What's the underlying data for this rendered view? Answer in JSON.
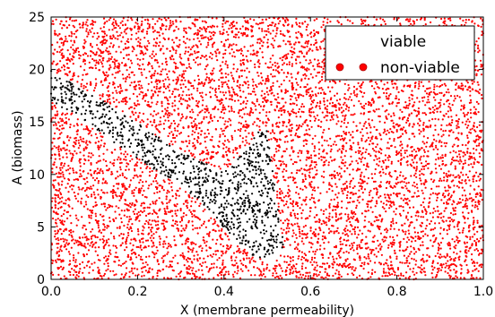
{
  "chart_data": {
    "type": "scatter",
    "title": "",
    "xlabel": "X (membrane permeability)",
    "ylabel": "A (biomass)",
    "xlim": [
      0.0,
      1.0
    ],
    "ylim": [
      0,
      25
    ],
    "xticks": [
      "0.0",
      "0.2",
      "0.4",
      "0.6",
      "0.8",
      "1.0"
    ],
    "yticks": [
      "0",
      "5",
      "10",
      "15",
      "20",
      "25"
    ],
    "grid": false,
    "legend": {
      "placement": "top-right"
    },
    "series": [
      {
        "name": "viable",
        "color": "#000000",
        "region_polygon": [
          [
            0.0,
            20.0
          ],
          [
            0.06,
            18.6
          ],
          [
            0.12,
            17.0
          ],
          [
            0.18,
            15.4
          ],
          [
            0.24,
            13.8
          ],
          [
            0.3,
            12.2
          ],
          [
            0.36,
            11.0
          ],
          [
            0.4,
            10.4
          ],
          [
            0.43,
            11.4
          ],
          [
            0.46,
            12.8
          ],
          [
            0.48,
            14.2
          ],
          [
            0.5,
            14.2
          ],
          [
            0.51,
            11.0
          ],
          [
            0.52,
            8.0
          ],
          [
            0.53,
            5.2
          ],
          [
            0.54,
            3.5
          ],
          [
            0.53,
            2.6
          ],
          [
            0.5,
            1.8
          ],
          [
            0.47,
            2.2
          ],
          [
            0.43,
            3.4
          ],
          [
            0.4,
            4.6
          ],
          [
            0.37,
            6.4
          ],
          [
            0.33,
            8.0
          ],
          [
            0.28,
            9.4
          ],
          [
            0.22,
            11.0
          ],
          [
            0.16,
            12.6
          ],
          [
            0.1,
            14.4
          ],
          [
            0.05,
            15.8
          ],
          [
            0.0,
            17.0
          ]
        ]
      },
      {
        "name": "non-viable",
        "color": "#ff0000",
        "region": "everywhere outside the viable region"
      }
    ]
  }
}
